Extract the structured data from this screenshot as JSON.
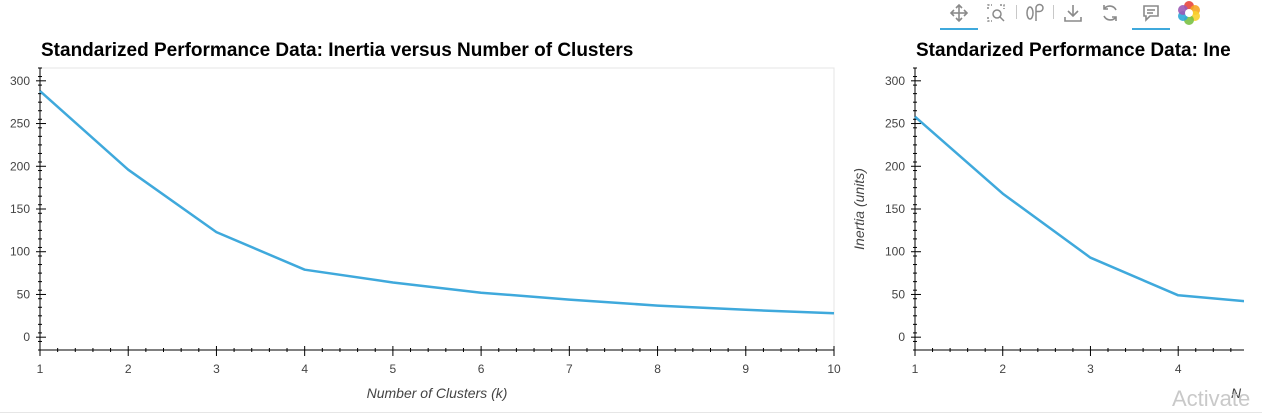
{
  "toolbar": {
    "tools": [
      {
        "icon": "pan-icon",
        "active": true
      },
      {
        "icon": "box-zoom-icon",
        "active": false
      },
      {
        "icon": "wheel-zoom-icon",
        "active": false
      },
      {
        "icon": "save-icon",
        "active": false
      },
      {
        "icon": "reset-icon",
        "active": false
      },
      {
        "icon": "hover-icon",
        "active": true
      },
      {
        "icon": "bokeh-logo-icon",
        "active": false
      }
    ]
  },
  "watermark": "Activate",
  "chart_data": [
    {
      "type": "line",
      "title": "Standarized Performance Data: Inertia versus Number of Clusters",
      "xlabel": "Number of Clusters (k)",
      "ylabel": "",
      "x": [
        1,
        2,
        3,
        4,
        5,
        6,
        7,
        8,
        9,
        10
      ],
      "series": [
        {
          "values": [
            288,
            196,
            123,
            79,
            64,
            52,
            44,
            37,
            32,
            28
          ]
        }
      ],
      "xlim": [
        1,
        10
      ],
      "ylim": [
        -15,
        315
      ],
      "xticks": [
        1,
        2,
        3,
        4,
        5,
        6,
        7,
        8,
        9,
        10
      ],
      "yticks": [
        0,
        50,
        100,
        150,
        200,
        250,
        300
      ],
      "color": "#3fa9dc",
      "grid": false
    },
    {
      "type": "line",
      "title": "Standarized Performance Data: Ine",
      "xlabel": "N",
      "ylabel": "Inertia (units)",
      "x": [
        1,
        2,
        3,
        4,
        5
      ],
      "series": [
        {
          "values": [
            258,
            168,
            93,
            49,
            40
          ]
        }
      ],
      "xlim": [
        1,
        4.75
      ],
      "ylim": [
        -15,
        315
      ],
      "xticks": [
        1,
        2,
        3,
        4
      ],
      "yticks": [
        0,
        50,
        100,
        150,
        200,
        250,
        300
      ],
      "color": "#3fa9dc",
      "grid": false
    }
  ]
}
